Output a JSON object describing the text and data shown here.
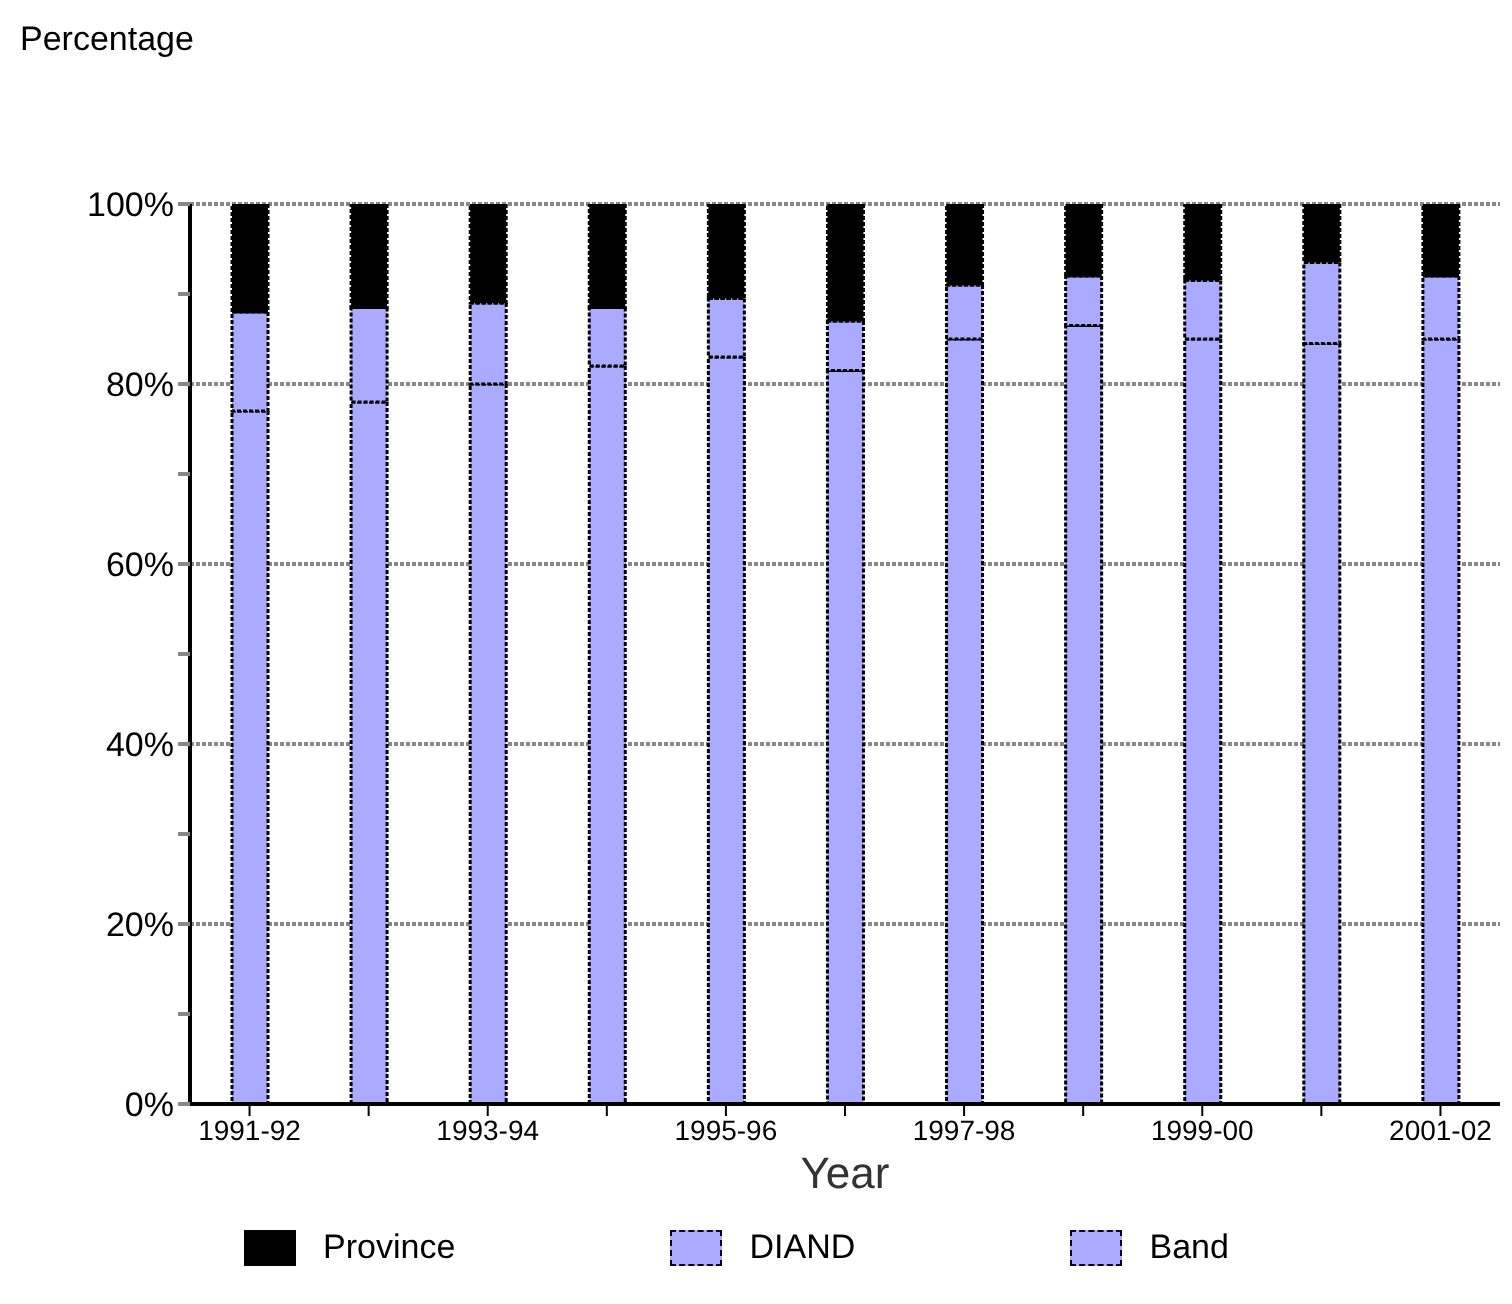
{
  "chart_data": {
    "type": "bar",
    "stacked": true,
    "ylabel": "Percentage",
    "xlabel": "Year",
    "categories": [
      "1991-92",
      null,
      "1993-94",
      null,
      "1995-96",
      null,
      "1997-98",
      null,
      "1999-00",
      null,
      "2001-02"
    ],
    "series": [
      {
        "name": "Band",
        "color": "#aaaaff",
        "values": [
          77,
          78,
          80,
          82,
          83,
          81.5,
          85,
          86.5,
          85,
          84.5,
          85
        ]
      },
      {
        "name": "DIAND",
        "color": "#aaaaff",
        "values": [
          11,
          10.5,
          9,
          6.5,
          6.5,
          5.5,
          6,
          5.5,
          6.5,
          9,
          7
        ]
      },
      {
        "name": "Province",
        "color": "#000000",
        "values": [
          12,
          11.5,
          11,
          11.5,
          10.5,
          13,
          9,
          8,
          8.5,
          6.5,
          8
        ]
      }
    ],
    "ylim": [
      0,
      100
    ],
    "yticks": [
      {
        "value": 0,
        "label": "0%"
      },
      {
        "value": 10,
        "label": null
      },
      {
        "value": 20,
        "label": "20%"
      },
      {
        "value": 30,
        "label": null
      },
      {
        "value": 40,
        "label": "40%"
      },
      {
        "value": 50,
        "label": null
      },
      {
        "value": 60,
        "label": "60%"
      },
      {
        "value": 70,
        "label": null
      },
      {
        "value": 80,
        "label": "80%"
      },
      {
        "value": 90,
        "label": null
      },
      {
        "value": 100,
        "label": "100%"
      }
    ],
    "grid": "y",
    "legend": "bottom"
  }
}
